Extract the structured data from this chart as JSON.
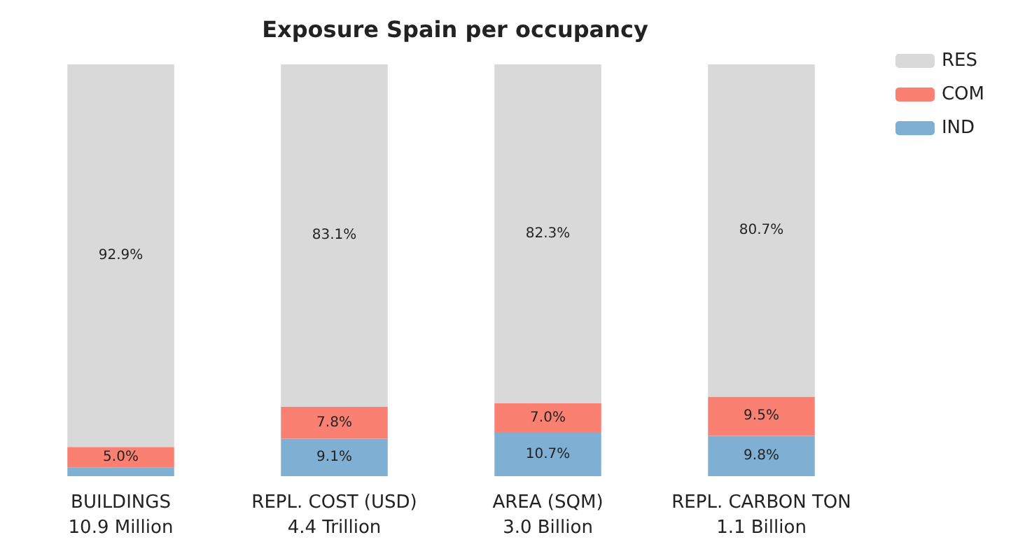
{
  "chart_data": {
    "type": "bar",
    "title": "Exposure Spain per occupancy",
    "stacked": true,
    "legend": "top right",
    "grid": false,
    "categories": [
      "BUILDINGS\n10.9 Million",
      "REPL. COST (USD)\n4.4 Trillion",
      "AREA (SQM)\n3.0 Billion",
      "REPL. CARBON TON\n1.1 Billion"
    ],
    "ylim": [
      0,
      100
    ],
    "tick_labels": "x",
    "series": [
      {
        "name": "IND",
        "color": "#7fb0d4",
        "values": [
          2.1,
          9.1,
          10.7,
          9.8
        ],
        "value_labels": [
          null,
          "9.1%",
          "10.7%",
          "9.8%"
        ]
      },
      {
        "name": "COM",
        "color": "#fa8072",
        "values": [
          5.0,
          7.8,
          7.0,
          9.5
        ],
        "value_labels": [
          "5.0%",
          "7.8%",
          "7.0%",
          "9.5%"
        ]
      },
      {
        "name": "RES",
        "color": "#d9d9d9",
        "values": [
          92.9,
          83.1,
          82.3,
          80.7
        ],
        "value_labels": [
          "92.9%",
          "83.1%",
          "82.3%",
          "80.7%"
        ]
      }
    ]
  }
}
